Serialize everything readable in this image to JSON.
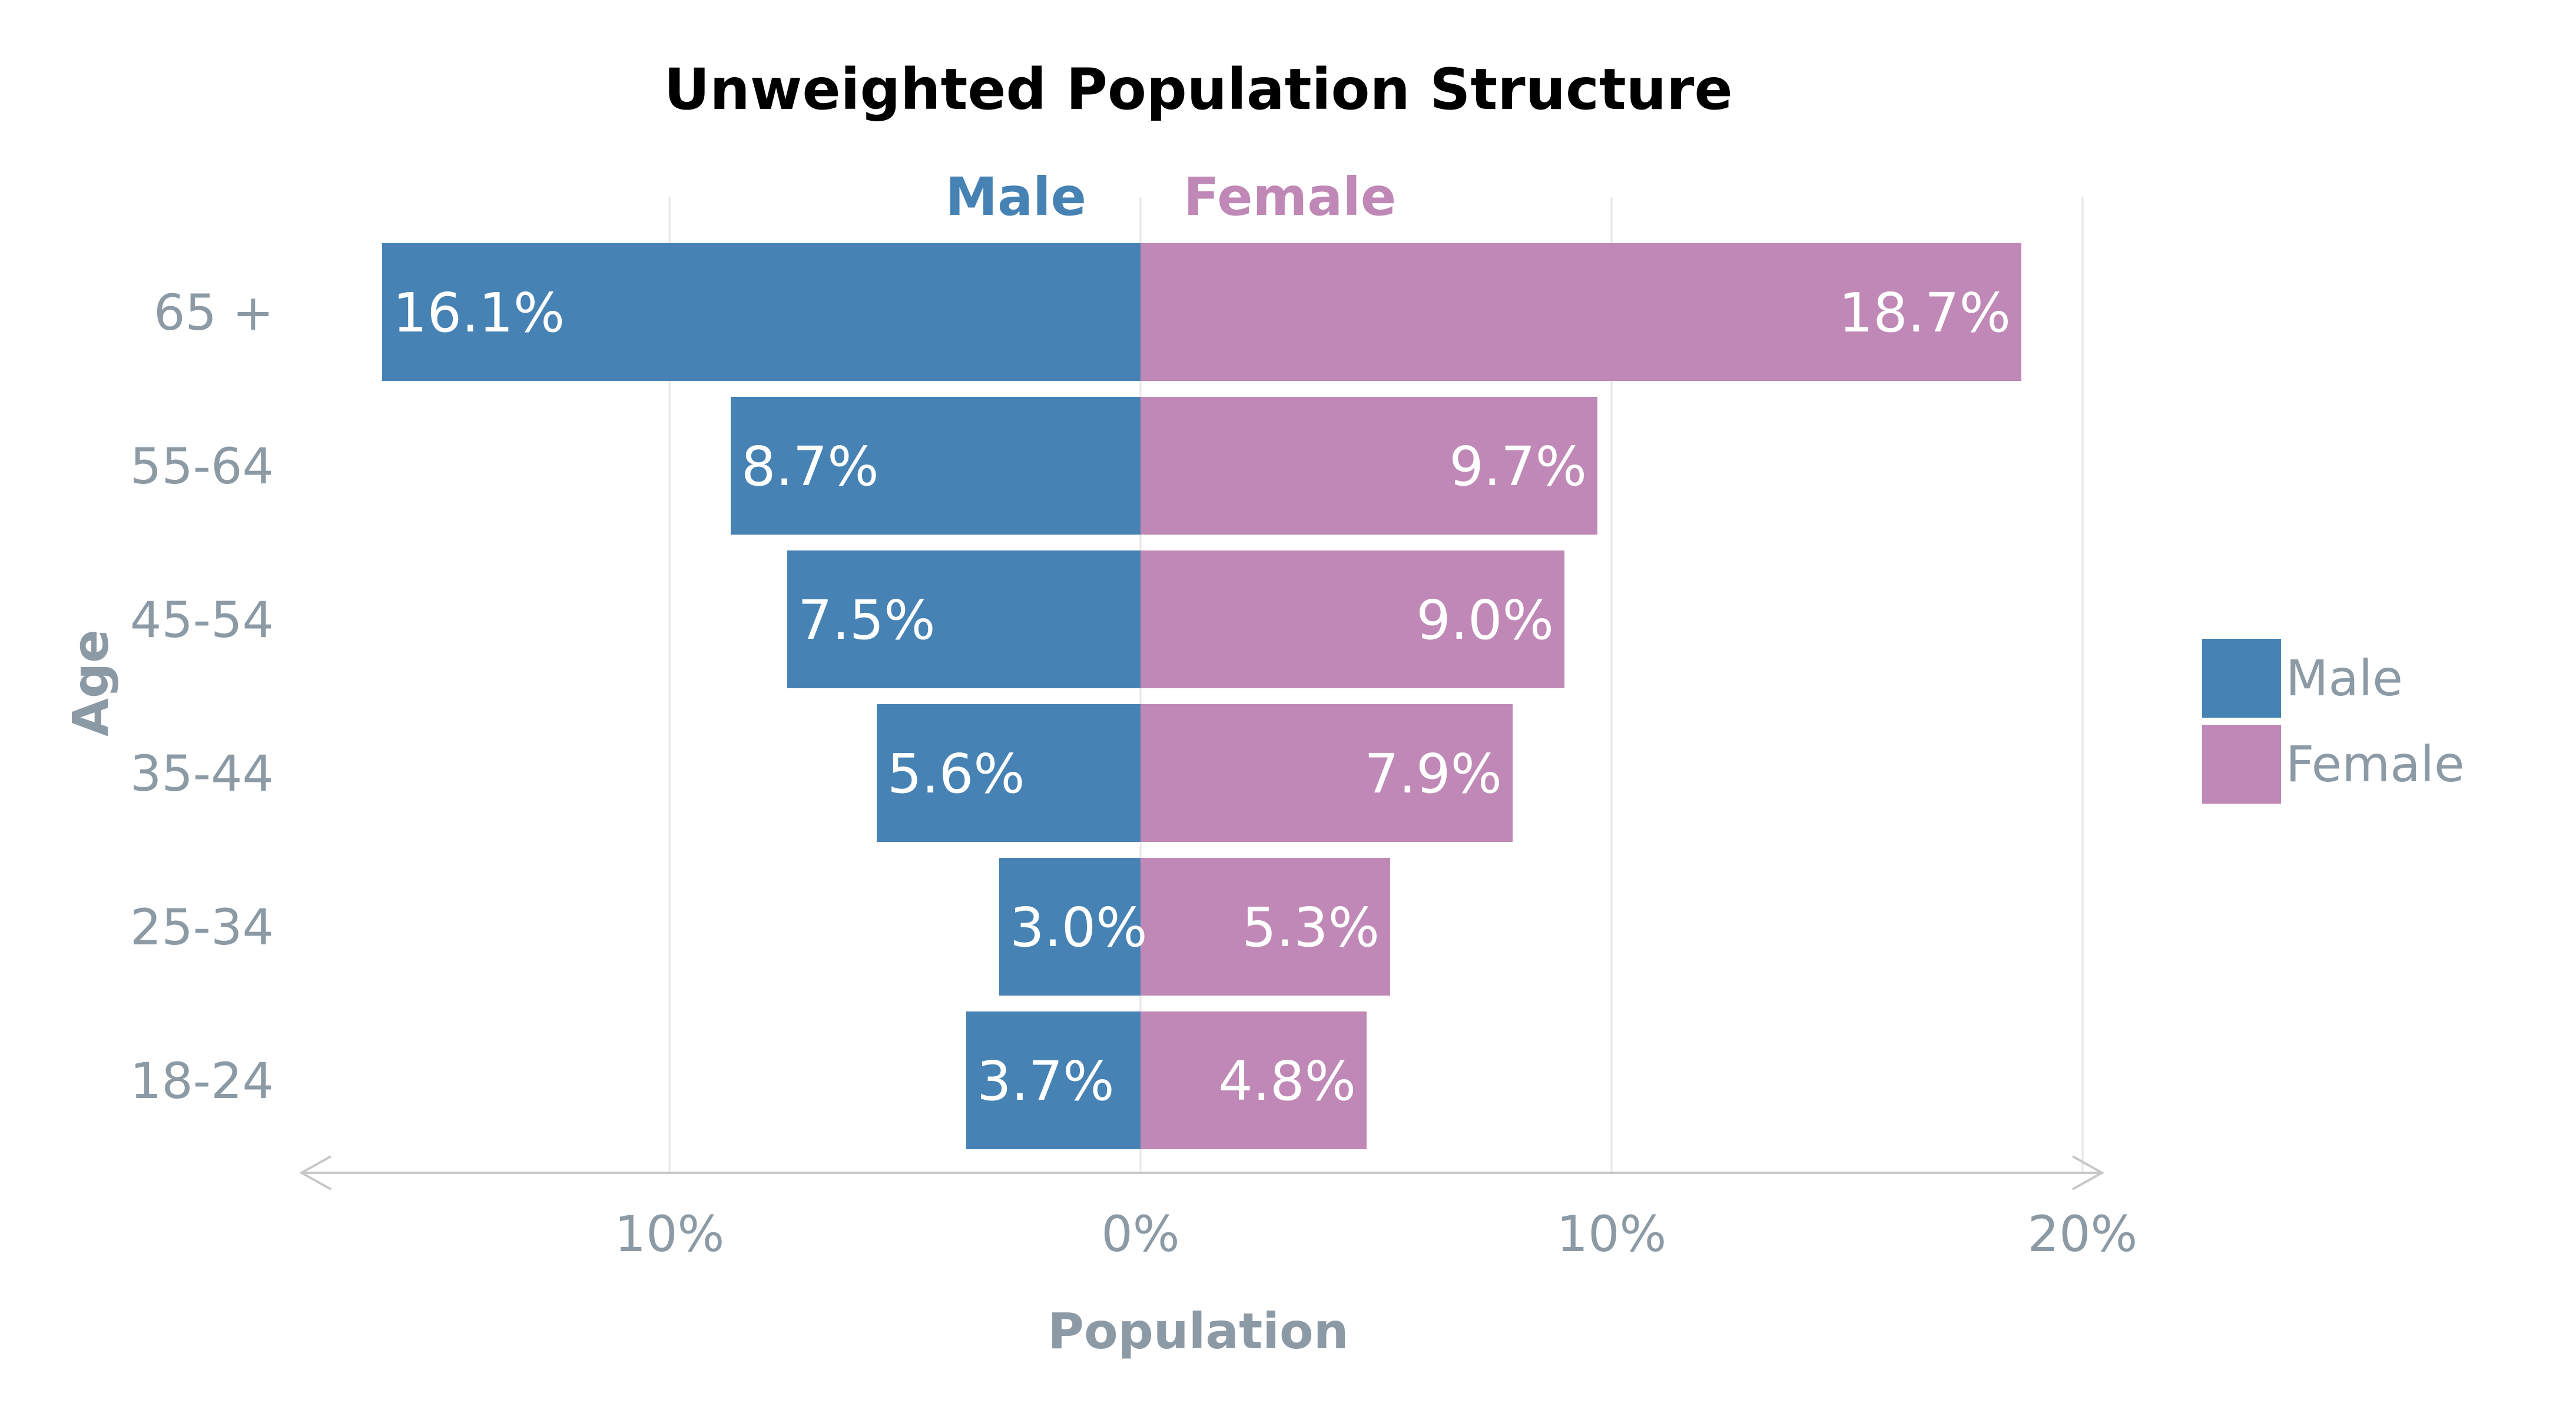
{
  "chart_data": {
    "type": "bar",
    "orientation": "horizontal-diverging",
    "title": "Unweighted Population Structure",
    "xlabel": "Population",
    "ylabel": "Age",
    "categories": [
      "65 +",
      "55-64",
      "45-54",
      "35-44",
      "25-34",
      "18-24"
    ],
    "series": [
      {
        "name": "Male",
        "color": "#4682b4",
        "values": [
          16.1,
          8.7,
          7.5,
          5.6,
          3.0,
          3.7
        ],
        "labels": [
          "16.1%",
          "8.7%",
          "7.5%",
          "5.6%",
          "3.0%",
          "3.7%"
        ]
      },
      {
        "name": "Female",
        "color": "#bf88b6",
        "values": [
          18.7,
          9.7,
          9.0,
          7.9,
          5.3,
          4.8
        ],
        "labels": [
          "18.7%",
          "9.7%",
          "9.0%",
          "7.9%",
          "5.3%",
          "4.8%"
        ]
      }
    ],
    "side_labels": {
      "left": "Male",
      "right": "Female"
    },
    "xlim": [
      -17.2,
      20.5
    ],
    "xticks": [
      -10,
      0,
      10,
      20
    ],
    "xtick_labels": [
      "10%",
      "0%",
      "10%",
      "20%"
    ],
    "grid": true,
    "legend": {
      "position": "right",
      "entries": [
        "Male",
        "Female"
      ]
    }
  }
}
